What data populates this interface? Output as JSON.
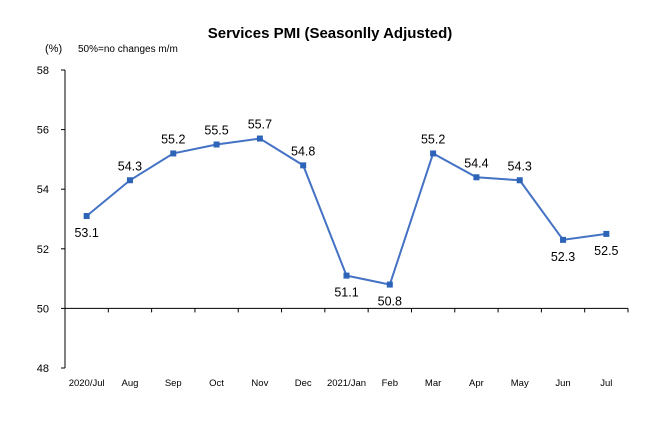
{
  "chart_data": {
    "type": "line",
    "title": "Services PMI (Seasonlly Adjusted)",
    "unit_label": "(%)",
    "note": "50%=no changes  m/m",
    "categories": [
      "2020/Jul",
      "Aug",
      "Sep",
      "Oct",
      "Nov",
      "Dec",
      "2021/Jan",
      "Feb",
      "Mar",
      "Apr",
      "May",
      "Jun",
      "Jul"
    ],
    "series": [
      {
        "values": [
          53.1,
          54.3,
          55.2,
          55.5,
          55.7,
          54.8,
          51.1,
          50.8,
          55.2,
          54.4,
          54.3,
          52.3,
          52.5
        ]
      }
    ],
    "data_labels": [
      "53.1",
      "54.3",
      "55.2",
      "55.5",
      "55.7",
      "54.8",
      "51.1",
      "50.8",
      "55.2",
      "54.4",
      "54.3",
      "52.3",
      "52.5"
    ],
    "label_placement": [
      "below",
      "above",
      "above",
      "above",
      "above",
      "above",
      "below",
      "below",
      "above",
      "above",
      "above",
      "below",
      "below"
    ],
    "yticks": [
      "58",
      "56",
      "54",
      "52",
      "50",
      "48"
    ],
    "ylim": [
      48,
      58
    ],
    "baseline": 50,
    "grid": false,
    "colors": {
      "line": "#4472C4",
      "marker": "#2E64B8",
      "axis": "#000000"
    }
  }
}
